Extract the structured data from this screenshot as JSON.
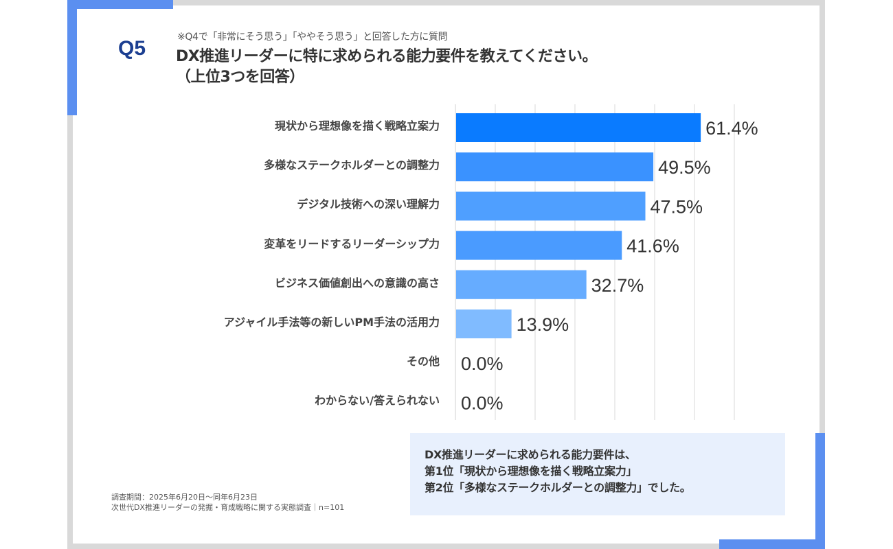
{
  "question": {
    "number": "Q5",
    "note": "※Q4で「非常にそう思う」「ややそう思う」と回答した方に質問",
    "title_line1": "DX推進リーダーに特に求められる能力要件を教えてください。",
    "title_line2": "（上位3つを回答）"
  },
  "chart_data": {
    "type": "bar",
    "orientation": "horizontal",
    "title": "DX推進リーダーに特に求められる能力要件を教えてください。（上位3つを回答）",
    "categories": [
      "現状から理想像を描く戦略立案力",
      "多様なステークホルダーとの調整力",
      "デジタル技術への深い理解力",
      "変革をリードするリーダーシップ力",
      "ビジネス価値創出への意識の高さ",
      "アジャイル手法等の新しいPM手法の活用力",
      "その他",
      "わからない/答えられない"
    ],
    "values": [
      61.4,
      49.5,
      47.5,
      41.6,
      32.7,
      13.9,
      0.0,
      0.0
    ],
    "value_labels": [
      "61.4%",
      "49.5%",
      "47.5%",
      "41.6%",
      "32.7%",
      "13.9%",
      "0.0%",
      "0.0%"
    ],
    "colors": [
      "#0a7bff",
      "#3a92ff",
      "#4f9fff",
      "#4a9bff",
      "#66acff",
      "#80bbff",
      "#9cc9ff",
      "#9cc9ff"
    ],
    "xlim": [
      0,
      70
    ],
    "grid": true,
    "grid_step": 10,
    "unit": "%"
  },
  "callout": {
    "line1": "DX推進リーダーに求められる能力要件は、",
    "line2": "第1位「現状から理想像を描く戦略立案力」",
    "line3": "第2位「多様なステークホルダーとの調整力」でした。"
  },
  "footer": {
    "period": "調査期間：2025年6月20日～同年6月23日",
    "source": "次世代DX推進リーダーの発掘・育成戦略に関する実態調査｜n=101"
  },
  "colors": {
    "accent": "#5b8ff0",
    "frame": "#d9d9d9",
    "q_badge": "#1c3f91",
    "callout_bg": "#e8f0fd",
    "grid": "#d9d9d9"
  }
}
